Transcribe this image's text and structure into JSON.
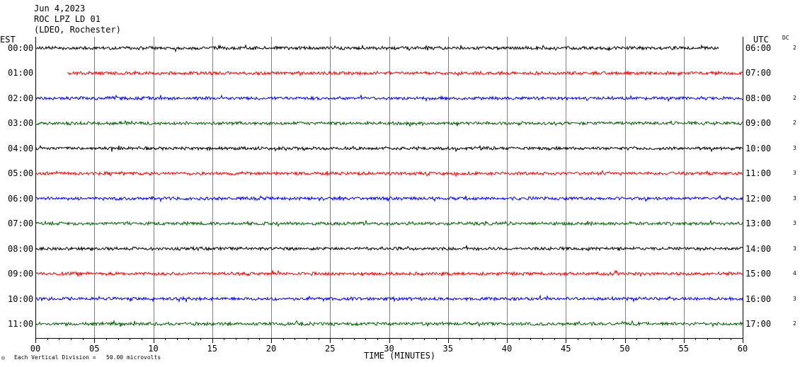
{
  "header": {
    "date": "Jun 4,2023",
    "station": "ROC LPZ LD 01",
    "network": "(LDEO, Rochester)"
  },
  "labels": {
    "left_tz": "EST",
    "right_tz": "UTC",
    "dc": "DC",
    "footer_scale": "Each Vertical Division =   50.00 microvolts",
    "footer_mark": "☺"
  },
  "chart_data": {
    "type": "line",
    "xlabel": "TIME (MINUTES)",
    "x_ticks": [
      "00",
      "05",
      "10",
      "15",
      "20",
      "25",
      "30",
      "35",
      "40",
      "45",
      "50",
      "55",
      "60"
    ],
    "xlim": [
      0,
      60
    ],
    "trace_colors": [
      "#000000",
      "#ff0000",
      "#0000ff",
      "#006400"
    ],
    "rows": [
      {
        "est": "00:00",
        "utc": "06:00",
        "dc": "2",
        "start_min": 0.0,
        "end_min": 58.0
      },
      {
        "est": "01:00",
        "utc": "07:00",
        "dc": "",
        "start_min": 2.7,
        "end_min": 60.0
      },
      {
        "est": "02:00",
        "utc": "08:00",
        "dc": "2",
        "start_min": 0.0,
        "end_min": 60.0
      },
      {
        "est": "03:00",
        "utc": "09:00",
        "dc": "2",
        "start_min": 0.0,
        "end_min": 60.0
      },
      {
        "est": "04:00",
        "utc": "10:00",
        "dc": "3",
        "start_min": 0.0,
        "end_min": 60.0
      },
      {
        "est": "05:00",
        "utc": "11:00",
        "dc": "3",
        "start_min": 0.0,
        "end_min": 60.0
      },
      {
        "est": "06:00",
        "utc": "12:00",
        "dc": "3",
        "start_min": 0.0,
        "end_min": 60.0
      },
      {
        "est": "07:00",
        "utc": "13:00",
        "dc": "3",
        "start_min": 0.0,
        "end_min": 60.0
      },
      {
        "est": "08:00",
        "utc": "14:00",
        "dc": "3",
        "start_min": 0.0,
        "end_min": 60.0
      },
      {
        "est": "09:00",
        "utc": "15:00",
        "dc": "4",
        "start_min": 0.0,
        "end_min": 60.0
      },
      {
        "est": "10:00",
        "utc": "16:00",
        "dc": "3",
        "start_min": 0.0,
        "end_min": 60.0
      },
      {
        "est": "11:00",
        "utc": "17:00",
        "dc": "2",
        "start_min": 0.0,
        "end_min": 60.0
      }
    ]
  }
}
